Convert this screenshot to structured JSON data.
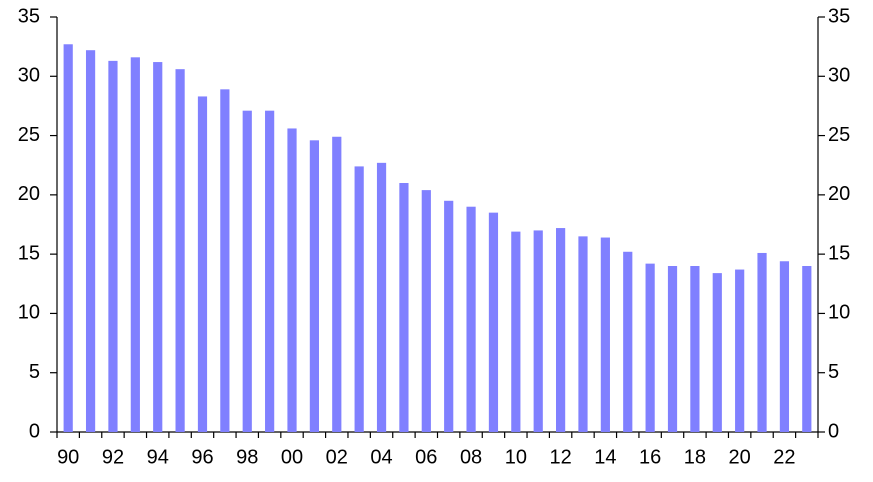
{
  "chart_data": {
    "type": "bar",
    "categories": [
      "90",
      null,
      "92",
      null,
      "94",
      null,
      "96",
      null,
      "98",
      null,
      "00",
      null,
      "02",
      null,
      "04",
      null,
      "06",
      null,
      "08",
      null,
      "10",
      null,
      "12",
      null,
      "14",
      null,
      "16",
      null,
      "18",
      null,
      "20",
      null,
      "22",
      null
    ],
    "values": [
      32.7,
      32.2,
      31.3,
      31.6,
      31.2,
      30.6,
      28.3,
      28.9,
      27.1,
      27.1,
      25.6,
      24.6,
      24.9,
      22.4,
      22.7,
      21.0,
      20.4,
      19.5,
      19.0,
      18.5,
      16.9,
      17.0,
      17.2,
      16.5,
      16.4,
      15.2,
      14.2,
      14.0,
      14.0,
      13.4,
      13.7,
      15.1,
      14.4,
      14.0
    ],
    "color": "#8080ff",
    "ylim": [
      0,
      35
    ],
    "yticks": [
      0,
      5,
      10,
      15,
      20,
      25,
      30,
      35
    ],
    "y2lim": [
      0,
      35
    ],
    "y2ticks": [
      0,
      5,
      10,
      15,
      20,
      25,
      30,
      35
    ],
    "grid": false
  }
}
